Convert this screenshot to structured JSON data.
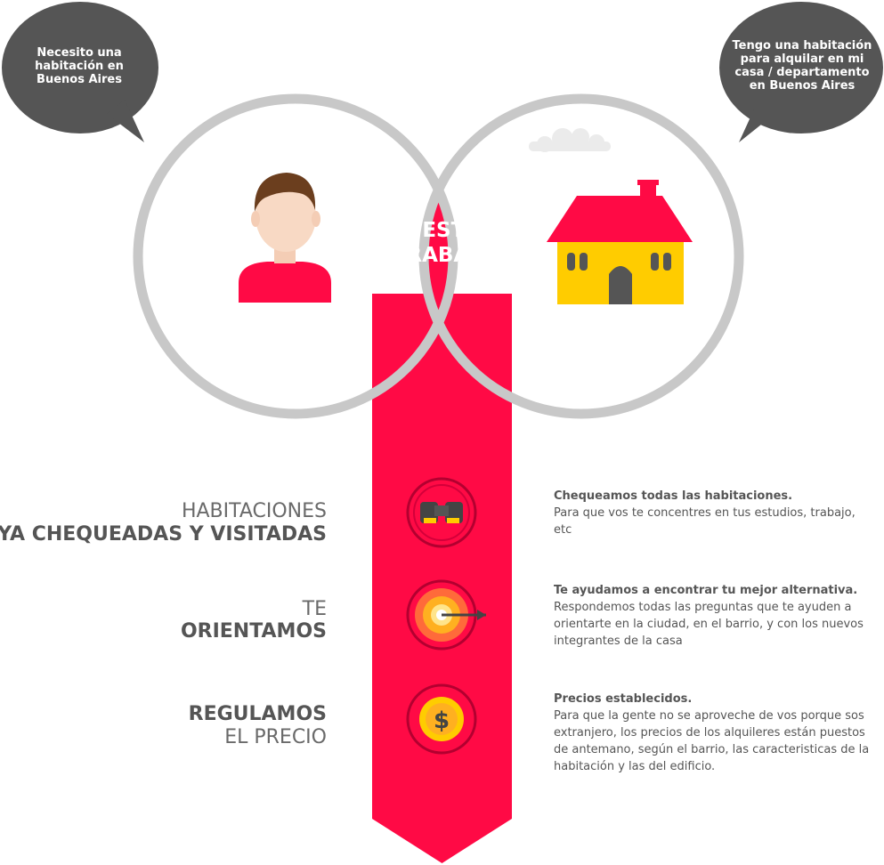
{
  "bubbles": {
    "left": "Necesito una habitación en Buenos Aires",
    "right": "Tengo una habitación para alquilar en mi casa / departamento en Buenos Aires"
  },
  "center": {
    "line1": "NUESTRO",
    "line2": "TRABAJO"
  },
  "steps": [
    {
      "label_line1": "HABITACIONES",
      "label_line2": "YA CHEQUEADAS Y VISITADAS",
      "icon": "binoculars-icon",
      "title": "Chequeamos todas las habitaciones.",
      "body": "Para que vos te concentres en tus estudios, trabajo, etc"
    },
    {
      "label_line1": "TE",
      "label_line2": "ORIENTAMOS",
      "icon": "target-icon",
      "title": "Te ayudamos a encontrar tu mejor alternativa.",
      "body": "Respondemos todas las preguntas que te ayuden a orientarte en la ciudad, en el barrio, y con los nuevos integrantes de la casa"
    },
    {
      "label_line1": "REGULAMOS",
      "label_line2": "EL PRECIO",
      "icon": "dollar-coin-icon",
      "title": "Precios establecidos.",
      "body": "Para que la gente no se aproveche de vos porque sos extranjero, los precios de los alquileres están puestos de antemano, según el barrio, las caracteristicas de la habitación y las del edificio."
    }
  ],
  "colors": {
    "accent": "#ff0a45",
    "bubble": "#555555",
    "ring": "#c8c8c8",
    "house": "#ffcc00",
    "text": "#555555"
  }
}
